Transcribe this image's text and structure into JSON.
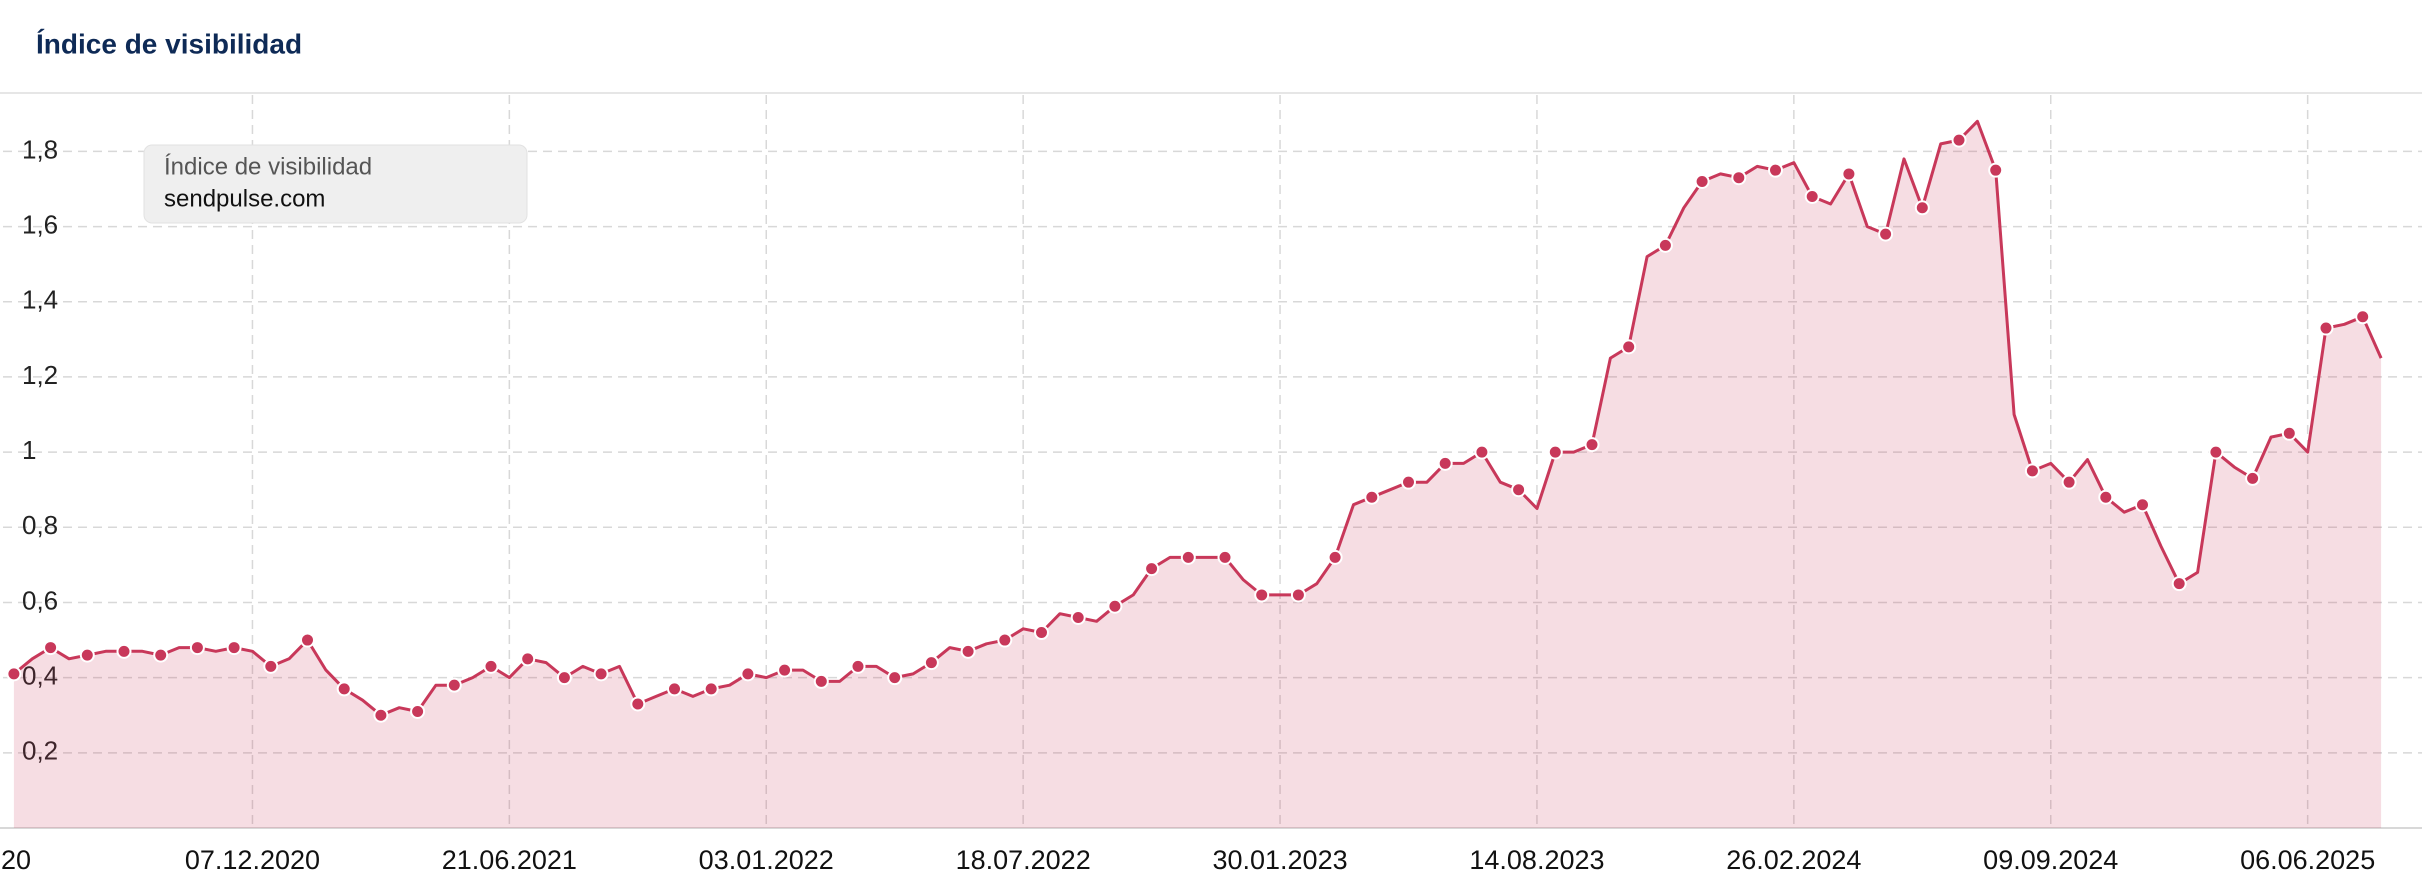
{
  "chart_data": {
    "type": "line",
    "title": "Índice de visibilidad",
    "legend_title": "Índice de visibilidad",
    "categories": [
      "20",
      null,
      null,
      null,
      null,
      null,
      null,
      null,
      null,
      null,
      null,
      null,
      null,
      "07.12.2020",
      null,
      null,
      null,
      null,
      null,
      null,
      null,
      null,
      null,
      null,
      null,
      null,
      null,
      "21.06.2021",
      null,
      null,
      null,
      null,
      null,
      null,
      null,
      null,
      null,
      null,
      null,
      null,
      null,
      "03.01.2022",
      null,
      null,
      null,
      null,
      null,
      null,
      null,
      null,
      null,
      null,
      null,
      null,
      null,
      "18.07.2022",
      null,
      null,
      null,
      null,
      null,
      null,
      null,
      null,
      null,
      null,
      null,
      null,
      null,
      "30.01.2023",
      null,
      null,
      null,
      null,
      null,
      null,
      null,
      null,
      null,
      null,
      null,
      null,
      null,
      "14.08.2023",
      null,
      null,
      null,
      null,
      null,
      null,
      null,
      null,
      null,
      null,
      null,
      null,
      null,
      "26.02.2024",
      null,
      null,
      null,
      null,
      null,
      null,
      null,
      null,
      null,
      null,
      null,
      null,
      null,
      "09.09.2024",
      null,
      null,
      null,
      null,
      null,
      null,
      null,
      null,
      null,
      null,
      null,
      null,
      null,
      "06.06.2025",
      null,
      null,
      null,
      null
    ],
    "series": [
      {
        "name": "sendpulse.com",
        "color": "#c8385a",
        "values": [
          0.41,
          0.45,
          0.48,
          0.45,
          0.46,
          0.47,
          0.47,
          0.47,
          0.46,
          0.48,
          0.48,
          0.47,
          0.48,
          0.47,
          0.43,
          0.45,
          0.5,
          0.42,
          0.37,
          0.34,
          0.3,
          0.32,
          0.31,
          0.38,
          0.38,
          0.4,
          0.43,
          0.4,
          0.45,
          0.44,
          0.4,
          0.43,
          0.41,
          0.43,
          0.33,
          0.35,
          0.37,
          0.35,
          0.37,
          0.38,
          0.41,
          0.4,
          0.42,
          0.42,
          0.39,
          0.39,
          0.43,
          0.43,
          0.4,
          0.41,
          0.44,
          0.48,
          0.47,
          0.49,
          0.5,
          0.53,
          0.52,
          0.57,
          0.56,
          0.55,
          0.59,
          0.62,
          0.69,
          0.72,
          0.72,
          0.72,
          0.72,
          0.66,
          0.62,
          0.62,
          0.62,
          0.65,
          0.72,
          0.86,
          0.88,
          0.9,
          0.92,
          0.92,
          0.97,
          0.97,
          1.0,
          0.92,
          0.9,
          0.85,
          1.0,
          1.0,
          1.02,
          1.25,
          1.28,
          1.52,
          1.55,
          1.65,
          1.72,
          1.74,
          1.73,
          1.76,
          1.75,
          1.77,
          1.68,
          1.66,
          1.74,
          1.6,
          1.58,
          1.78,
          1.65,
          1.82,
          1.83,
          1.88,
          1.75,
          1.1,
          0.95,
          0.97,
          0.92,
          0.98,
          0.88,
          0.84,
          0.86,
          0.75,
          0.65,
          0.68,
          1.0,
          0.96,
          0.93,
          1.04,
          1.05,
          1.0,
          1.33,
          1.34,
          1.36,
          1.25
        ]
      }
    ],
    "ylim": [
      0,
      1.95
    ],
    "yticks": [
      {
        "value": 0.2,
        "label": "0,2"
      },
      {
        "value": 0.4,
        "label": "0,4"
      },
      {
        "value": 0.6,
        "label": "0,6"
      },
      {
        "value": 0.8,
        "label": "0,8"
      },
      1,
      {
        "value": 1.2,
        "label": "1,2"
      },
      {
        "value": 1.4,
        "label": "1,4"
      },
      {
        "value": 1.6,
        "label": "1,6"
      },
      {
        "value": 1.8,
        "label": "1,8"
      }
    ],
    "grid": true
  }
}
